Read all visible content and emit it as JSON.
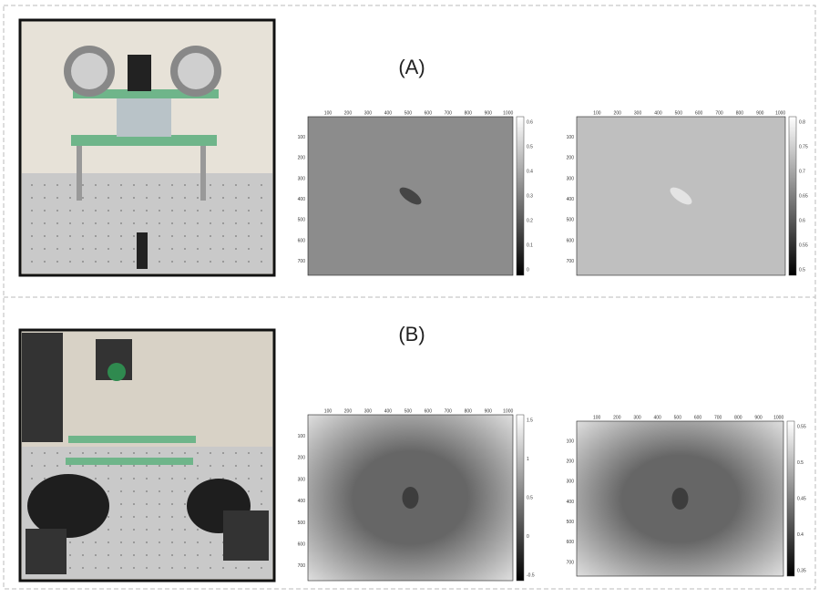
{
  "sections": [
    {
      "label": "(A)",
      "panels": [
        {
          "xticks": [
            100,
            200,
            300,
            400,
            500,
            600,
            700,
            800,
            900,
            1000
          ],
          "yticks": [
            100,
            200,
            300,
            400,
            500,
            600,
            700
          ],
          "colorbar": [
            "0.6",
            "0.5",
            "0.4",
            "0.3",
            "0.2",
            "0.1",
            "0"
          ]
        },
        {
          "xticks": [
            100,
            200,
            300,
            400,
            500,
            600,
            700,
            800,
            900,
            1000
          ],
          "yticks": [
            100,
            200,
            300,
            400,
            500,
            600,
            700
          ],
          "colorbar": [
            "0.8",
            "0.75",
            "0.7",
            "0.65",
            "0.6",
            "0.55",
            "0.5"
          ]
        }
      ]
    },
    {
      "label": "(B)",
      "panels": [
        {
          "xticks": [
            100,
            200,
            300,
            400,
            500,
            600,
            700,
            800,
            900,
            1000
          ],
          "yticks": [
            100,
            200,
            300,
            400,
            500,
            600,
            700
          ],
          "colorbar": [
            "1.5",
            "1",
            "0.5",
            "0",
            "-0.5"
          ]
        },
        {
          "xticks": [
            100,
            200,
            300,
            400,
            500,
            600,
            700,
            800,
            900,
            1000
          ],
          "yticks": [
            100,
            200,
            300,
            400,
            500,
            600,
            700
          ],
          "colorbar": [
            "0.55",
            "0.5",
            "0.45",
            "0.4",
            "0.35"
          ]
        }
      ]
    }
  ]
}
